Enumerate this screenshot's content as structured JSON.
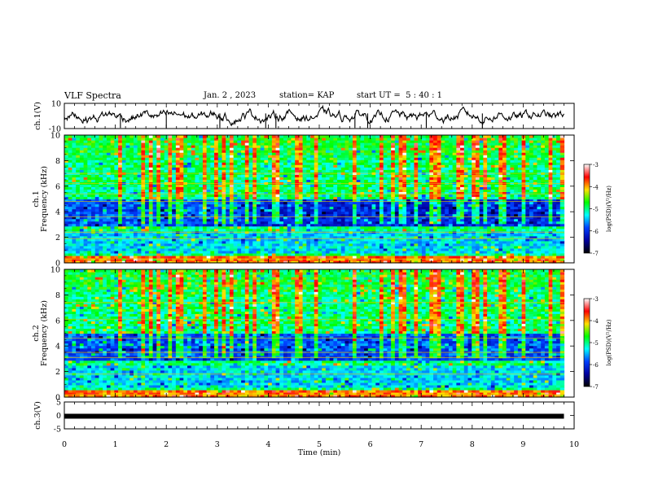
{
  "header": {
    "title": "VLF Spectra",
    "date": "Jan. 2 , 2023",
    "station": "station= KAP",
    "start": "start UT =  5 : 40 : 1"
  },
  "colorbar": {
    "label": "log(PSD)(V²/Hz)",
    "ticks": [
      "-3",
      "-4",
      "-5",
      "-6",
      "-7"
    ],
    "colors": [
      "#ffffff",
      "#ff0000",
      "#ffe000",
      "#00ff00",
      "#00ffff",
      "#0040ff",
      "#0000a0",
      "#000000"
    ]
  },
  "chart_data": [
    {
      "type": "line",
      "panel": "ch1-waveform",
      "ylabel": "ch.1(V)",
      "ylim": [
        -10,
        10
      ],
      "yticks": [
        "10",
        "-10"
      ],
      "xlim": [
        0,
        10
      ],
      "approx_level": 0,
      "approx_amplitude": 5
    },
    {
      "type": "heatmap",
      "panel": "ch1-spectrogram",
      "ylabel_channel": "ch.1",
      "ylabel": "Frequency (kHz)",
      "ylim": [
        0,
        10
      ],
      "yticks": [
        "0",
        "2",
        "4",
        "6",
        "8",
        "10"
      ],
      "xlim": [
        0,
        9.8
      ],
      "zlim": [
        -7,
        -3
      ]
    },
    {
      "type": "heatmap",
      "panel": "ch2-spectrogram",
      "ylabel_channel": "ch.2",
      "ylabel": "Frequency (kHz)",
      "ylim": [
        0,
        10
      ],
      "yticks": [
        "0",
        "2",
        "4",
        "6",
        "8",
        "10"
      ],
      "xlim": [
        0,
        9.8
      ],
      "zlim": [
        -7,
        -3
      ]
    },
    {
      "type": "line",
      "panel": "ch3-waveform",
      "ylabel": "ch.3(V)",
      "ylim": [
        -5,
        5
      ],
      "yticks": [
        "5",
        "0",
        "-5"
      ],
      "xlim": [
        0,
        10
      ],
      "approx_level": -0.3
    }
  ],
  "xaxis": {
    "label": "Time (min)",
    "ticks": [
      "0",
      "1",
      "2",
      "3",
      "4",
      "5",
      "6",
      "7",
      "8",
      "9",
      "10"
    ]
  }
}
